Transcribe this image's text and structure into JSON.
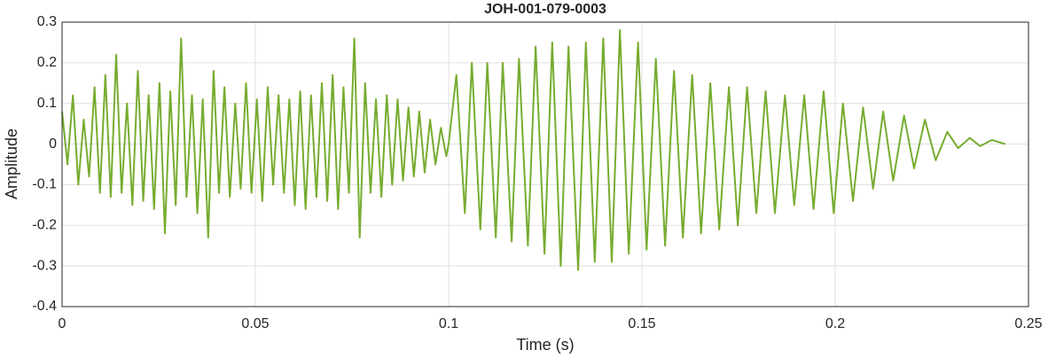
{
  "chart_data": {
    "type": "line",
    "title": "JOH-001-079-0003",
    "xlabel": "Time (s)",
    "ylabel": "Amplitude",
    "color": "#77ac30",
    "grid": true,
    "xlim": [
      0,
      0.25
    ],
    "xticks": [
      0,
      0.05,
      0.1,
      0.15,
      0.2,
      0.25
    ],
    "ylim": [
      -0.4,
      0.3
    ],
    "yticks": [
      -0.4,
      -0.3,
      -0.2,
      -0.1,
      0,
      0.1,
      0.2,
      0.3
    ],
    "x": [
      0,
      0.0014,
      0.0028,
      0.0042,
      0.0056,
      0.007,
      0.0084,
      0.0098,
      0.0112,
      0.0126,
      0.014,
      0.0154,
      0.0168,
      0.0182,
      0.0196,
      0.021,
      0.0224,
      0.0238,
      0.0252,
      0.0266,
      0.028,
      0.0294,
      0.0308,
      0.0322,
      0.0336,
      0.035,
      0.0364,
      0.0378,
      0.0392,
      0.0406,
      0.042,
      0.0434,
      0.0448,
      0.0462,
      0.0476,
      0.049,
      0.0504,
      0.0518,
      0.0532,
      0.0546,
      0.056,
      0.0574,
      0.0588,
      0.0602,
      0.0616,
      0.063,
      0.0644,
      0.0658,
      0.0672,
      0.0686,
      0.07,
      0.0714,
      0.0728,
      0.0742,
      0.0756,
      0.077,
      0.0784,
      0.0798,
      0.0812,
      0.0826,
      0.084,
      0.0854,
      0.0868,
      0.0882,
      0.0896,
      0.091,
      0.0924,
      0.0938,
      0.0952,
      0.0966,
      0.098,
      0.0994,
      0.1,
      0.102,
      0.1042,
      0.106,
      0.1082,
      0.11,
      0.1122,
      0.114,
      0.1163,
      0.1182,
      0.1205,
      0.1225,
      0.1248,
      0.1268,
      0.129,
      0.131,
      0.1335,
      0.1355,
      0.1378,
      0.14,
      0.1422,
      0.1443,
      0.1466,
      0.149,
      0.1512,
      0.1536,
      0.156,
      0.1583,
      0.1606,
      0.163,
      0.1653,
      0.1677,
      0.17,
      0.1725,
      0.1748,
      0.1772,
      0.1796,
      0.182,
      0.1844,
      0.187,
      0.1894,
      0.192,
      0.1944,
      0.197,
      0.1996,
      0.202,
      0.2046,
      0.2072,
      0.2098,
      0.2124,
      0.215,
      0.2178,
      0.2204,
      0.2232,
      0.226,
      0.229,
      0.2318,
      0.2348,
      0.2375,
      0.2405,
      0.244
    ],
    "values": [
      0.08,
      -0.05,
      0.12,
      -0.1,
      0.06,
      -0.08,
      0.14,
      -0.12,
      0.17,
      -0.13,
      0.22,
      -0.12,
      0.1,
      -0.15,
      0.18,
      -0.14,
      0.12,
      -0.16,
      0.15,
      -0.22,
      0.13,
      -0.15,
      0.26,
      -0.13,
      0.12,
      -0.17,
      0.11,
      -0.23,
      0.18,
      -0.12,
      0.14,
      -0.13,
      0.1,
      -0.11,
      0.15,
      -0.12,
      0.11,
      -0.14,
      0.14,
      -0.1,
      0.12,
      -0.12,
      0.11,
      -0.15,
      0.13,
      -0.16,
      0.12,
      -0.13,
      0.15,
      -0.14,
      0.17,
      -0.16,
      0.14,
      -0.12,
      0.26,
      -0.23,
      0.15,
      -0.12,
      0.11,
      -0.13,
      0.12,
      -0.1,
      0.11,
      -0.09,
      0.09,
      -0.08,
      0.08,
      -0.07,
      0.06,
      -0.05,
      0.04,
      -0.03,
      0,
      0.17,
      -0.17,
      0.2,
      -0.21,
      0.2,
      -0.23,
      0.2,
      -0.24,
      0.21,
      -0.25,
      0.24,
      -0.27,
      0.25,
      -0.3,
      0.24,
      -0.31,
      0.25,
      -0.29,
      0.26,
      -0.29,
      0.28,
      -0.27,
      0.25,
      -0.26,
      0.21,
      -0.25,
      0.18,
      -0.23,
      0.17,
      -0.22,
      0.15,
      -0.21,
      0.14,
      -0.2,
      0.14,
      -0.17,
      0.13,
      -0.17,
      0.12,
      -0.15,
      0.12,
      -0.16,
      0.13,
      -0.17,
      0.1,
      -0.14,
      0.09,
      -0.11,
      0.08,
      -0.09,
      0.07,
      -0.06,
      0.06,
      -0.04,
      0.03,
      -0.01,
      0.015,
      -0.005,
      0.01,
      0
    ]
  }
}
